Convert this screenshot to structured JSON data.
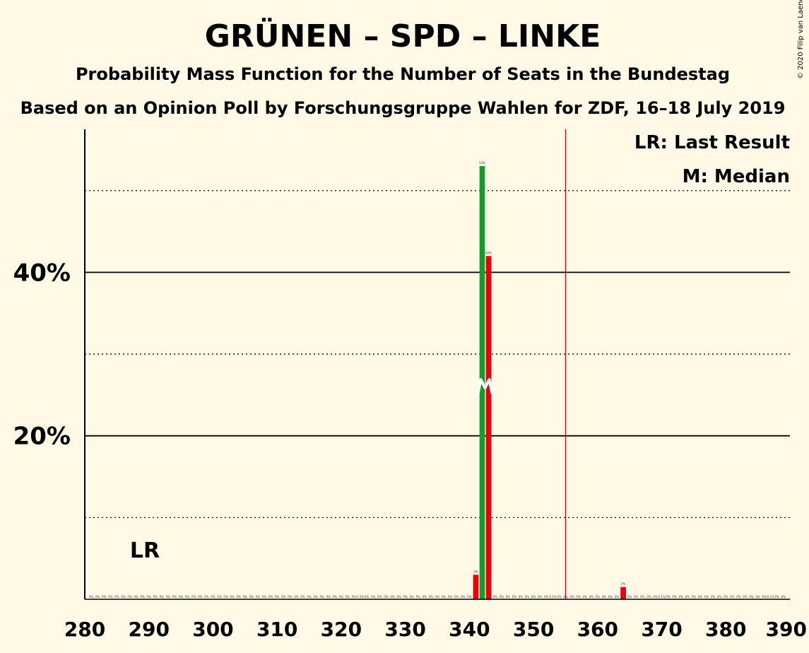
{
  "title": "GRÜNEN – SPD – LINKE",
  "subtitle": "Probability Mass Function for the Number of Seats in the Bundestag",
  "subtitle2": "Based on an Opinion Poll by Forschungsgruppe Wahlen for ZDF, 16–18 July 2019",
  "copyright": "© 2020 Filip van Laenen",
  "legend": {
    "last_result": "LR: Last Result",
    "median": "M: Median"
  },
  "annotations": {
    "lr_label": "LR",
    "median_marker": "M"
  },
  "colors": {
    "background": "#fff9e5",
    "green": "#0da12b",
    "red": "#e8000f",
    "majority_line": "#cc0000"
  },
  "chart_data": {
    "type": "bar",
    "xlim": [
      280,
      390
    ],
    "ylim": [
      0,
      0.575
    ],
    "x_ticks": [
      280,
      290,
      300,
      310,
      320,
      330,
      340,
      350,
      360,
      370,
      380,
      390
    ],
    "y_ticks_labeled": [
      {
        "value": 0.2,
        "label": "20%"
      },
      {
        "value": 0.4,
        "label": "40%"
      }
    ],
    "y_gridlines_solid": [
      0.2,
      0.4
    ],
    "y_gridlines_dotted": [
      0.1,
      0.3,
      0.5
    ],
    "majority_threshold": 355,
    "last_result": 289,
    "median": 342,
    "bars": [
      {
        "x": 341,
        "value": 0.03,
        "label": "3%",
        "color": "red"
      },
      {
        "x": 342,
        "value": 0.53,
        "label": "53%",
        "color": "green"
      },
      {
        "x": 343,
        "value": 0.42,
        "label": "42%",
        "color": "red"
      },
      {
        "x": 364,
        "value": 0.015,
        "label": "2%",
        "color": "red"
      }
    ],
    "zero_labels": "0%",
    "small_labels": [
      {
        "x": 323,
        "label": "0.1%"
      },
      {
        "x": 353,
        "label": "0.1%"
      },
      {
        "x": 370,
        "label": "0.1%"
      },
      {
        "x": 387,
        "label": "0.1%"
      }
    ]
  }
}
